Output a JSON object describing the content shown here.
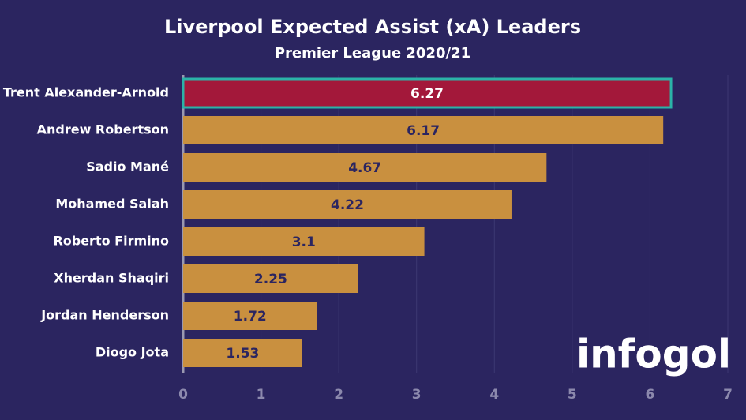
{
  "chart_data": {
    "type": "barh",
    "title": "Liverpool Expected Assist (xA) Leaders",
    "subtitle": "Premier League 2020/21",
    "categories": [
      "Trent Alexander-Arnold",
      "Andrew Robertson",
      "Sadio Mané",
      "Mohamed Salah",
      "Roberto Firmino",
      "Xherdan Shaqiri",
      "Jordan Henderson",
      "Diogo Jota"
    ],
    "values": [
      6.27,
      6.17,
      4.67,
      4.22,
      3.1,
      2.25,
      1.72,
      1.53
    ],
    "colors": [
      "#a3183a",
      "#c9903f",
      "#c9903f",
      "#c9903f",
      "#c9903f",
      "#c9903f",
      "#c9903f",
      "#c9903f"
    ],
    "xlim": [
      0,
      7
    ],
    "xticks": [
      0,
      1,
      2,
      3,
      4,
      5,
      6,
      7
    ],
    "grid": true,
    "logo": "infogol"
  }
}
